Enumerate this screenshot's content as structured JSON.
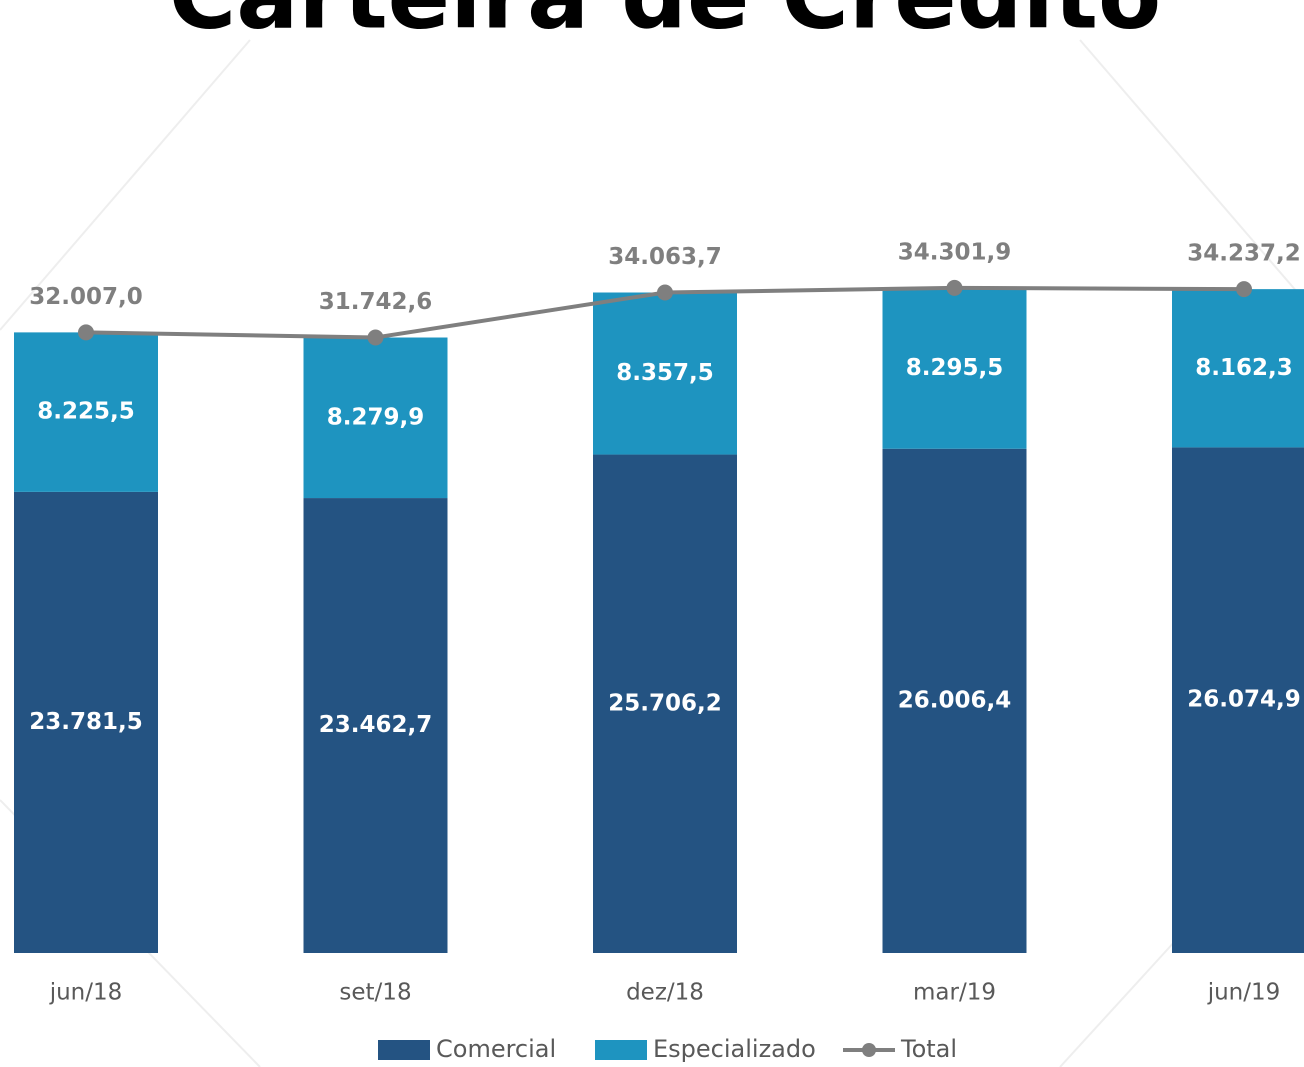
{
  "chart_data": {
    "type": "bar",
    "stacked": true,
    "title": "Carteira de Crédito",
    "categories": [
      "jun/18",
      "set/18",
      "dez/18",
      "mar/19",
      "jun/19"
    ],
    "series": [
      {
        "name": "Comercial",
        "type": "bar",
        "color": "#245382",
        "values": [
          23781.5,
          23462.7,
          25706.2,
          26006.4,
          26074.9
        ],
        "value_labels": [
          "23.781,5",
          "23.462,7",
          "25.706,2",
          "26.006,4",
          "26.074,9"
        ]
      },
      {
        "name": "Especializado",
        "type": "bar",
        "color": "#1e94c0",
        "values": [
          8225.5,
          8279.9,
          8357.5,
          8295.5,
          8162.3
        ],
        "value_labels": [
          "8.225,5",
          "8.279,9",
          "8.357,5",
          "8.295,5",
          "8.162,3"
        ]
      },
      {
        "name": "Total",
        "type": "line",
        "color": "#7f7f7f",
        "values": [
          32007.0,
          31742.6,
          34063.7,
          34301.9,
          34237.2
        ],
        "value_labels": [
          "32.007,0",
          "31.742,6",
          "34.063,7",
          "34.301,9",
          "34.237,2"
        ]
      }
    ],
    "legend": "bottom"
  }
}
